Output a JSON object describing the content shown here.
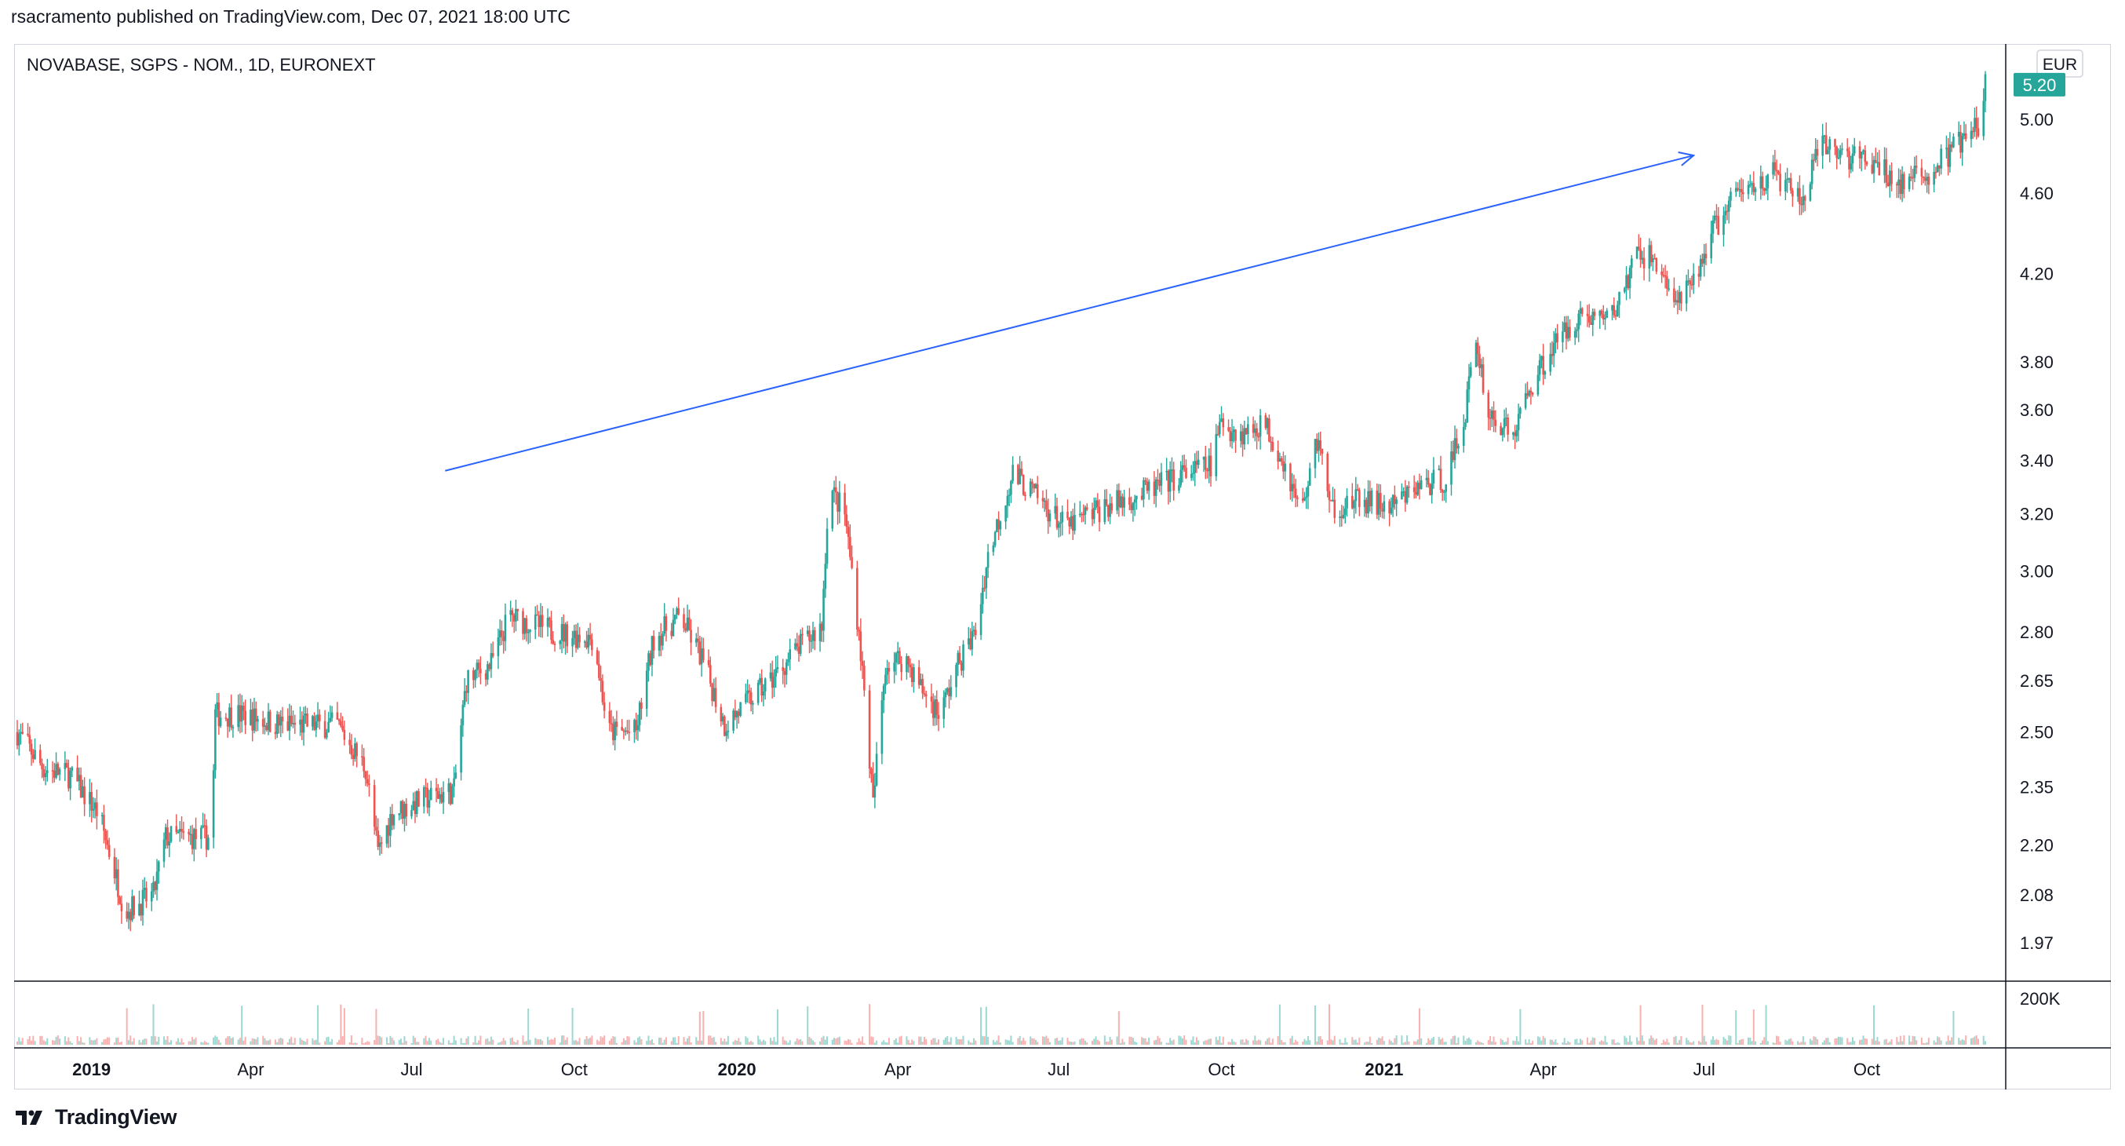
{
  "header": {
    "text": "rsacramento published on TradingView.com, Dec 07, 2021 18:00 UTC"
  },
  "symbol": {
    "text": "NOVABASE, SGPS - NOM., 1D, EURONEXT"
  },
  "footer": {
    "brand": "TradingView"
  },
  "colors": {
    "up": "#26a69a",
    "down": "#ef5350",
    "trendline": "#2962ff",
    "price_badge": "#26a69a"
  },
  "chart_data": {
    "type": "candlestick",
    "title": "",
    "currency": "EUR",
    "y_scale": "log",
    "y_ticks": [
      1.97,
      2.08,
      2.2,
      2.35,
      2.5,
      2.65,
      2.8,
      3.0,
      3.2,
      3.4,
      3.6,
      3.8,
      4.2,
      4.6,
      5.0
    ],
    "last_price": 5.2,
    "last_price_label": "5.20",
    "volume_tick_label": "200K",
    "x_ticks": [
      {
        "label": "2019",
        "date": "2019-01-01",
        "bold": true
      },
      {
        "label": "Apr",
        "date": "2019-04-01",
        "bold": false
      },
      {
        "label": "Jul",
        "date": "2019-07-01",
        "bold": false
      },
      {
        "label": "Oct",
        "date": "2019-10-01",
        "bold": false
      },
      {
        "label": "2020",
        "date": "2020-01-01",
        "bold": true
      },
      {
        "label": "Apr",
        "date": "2020-04-01",
        "bold": false
      },
      {
        "label": "Jul",
        "date": "2020-07-01",
        "bold": false
      },
      {
        "label": "Oct",
        "date": "2020-10-01",
        "bold": false
      },
      {
        "label": "2021",
        "date": "2021-01-01",
        "bold": true
      },
      {
        "label": "Apr",
        "date": "2021-04-01",
        "bold": false
      },
      {
        "label": "Jul",
        "date": "2021-07-01",
        "bold": false
      },
      {
        "label": "Oct",
        "date": "2021-10-01",
        "bold": false
      }
    ],
    "close_path": [
      [
        "2018-11-20",
        2.5
      ],
      [
        "2018-12-05",
        2.4
      ],
      [
        "2018-12-20",
        2.38
      ],
      [
        "2019-01-05",
        2.28
      ],
      [
        "2019-01-20",
        2.04
      ],
      [
        "2019-02-05",
        2.08
      ],
      [
        "2019-02-12",
        2.22
      ],
      [
        "2019-02-28",
        2.22
      ],
      [
        "2019-03-10",
        2.22
      ],
      [
        "2019-03-12",
        2.55
      ],
      [
        "2019-03-25",
        2.55
      ],
      [
        "2019-04-20",
        2.52
      ],
      [
        "2019-05-20",
        2.52
      ],
      [
        "2019-06-05",
        2.4
      ],
      [
        "2019-06-12",
        2.18
      ],
      [
        "2019-06-20",
        2.28
      ],
      [
        "2019-07-10",
        2.32
      ],
      [
        "2019-07-25",
        2.34
      ],
      [
        "2019-08-01",
        2.65
      ],
      [
        "2019-08-15",
        2.7
      ],
      [
        "2019-08-25",
        2.85
      ],
      [
        "2019-09-20",
        2.8
      ],
      [
        "2019-10-12",
        2.78
      ],
      [
        "2019-10-20",
        2.5
      ],
      [
        "2019-11-05",
        2.5
      ],
      [
        "2019-11-15",
        2.78
      ],
      [
        "2019-11-30",
        2.85
      ],
      [
        "2019-12-12",
        2.72
      ],
      [
        "2019-12-25",
        2.52
      ],
      [
        "2020-01-20",
        2.65
      ],
      [
        "2020-02-05",
        2.75
      ],
      [
        "2020-02-18",
        2.82
      ],
      [
        "2020-02-22",
        3.3
      ],
      [
        "2020-03-02",
        3.2
      ],
      [
        "2020-03-10",
        2.8
      ],
      [
        "2020-03-18",
        2.3
      ],
      [
        "2020-03-25",
        2.7
      ],
      [
        "2020-04-05",
        2.72
      ],
      [
        "2020-04-15",
        2.62
      ],
      [
        "2020-04-25",
        2.55
      ],
      [
        "2020-05-05",
        2.7
      ],
      [
        "2020-05-15",
        2.8
      ],
      [
        "2020-05-22",
        3.05
      ],
      [
        "2020-06-05",
        3.35
      ],
      [
        "2020-06-20",
        3.25
      ],
      [
        "2020-07-05",
        3.15
      ],
      [
        "2020-07-25",
        3.22
      ],
      [
        "2020-08-20",
        3.28
      ],
      [
        "2020-09-10",
        3.35
      ],
      [
        "2020-09-25",
        3.38
      ],
      [
        "2020-10-01",
        3.55
      ],
      [
        "2020-10-12",
        3.5
      ],
      [
        "2020-10-25",
        3.55
      ],
      [
        "2020-11-05",
        3.4
      ],
      [
        "2020-11-15",
        3.2
      ],
      [
        "2020-11-25",
        3.5
      ],
      [
        "2020-12-01",
        3.22
      ],
      [
        "2020-12-20",
        3.25
      ],
      [
        "2021-01-05",
        3.22
      ],
      [
        "2021-01-20",
        3.3
      ],
      [
        "2021-02-05",
        3.33
      ],
      [
        "2021-02-15",
        3.55
      ],
      [
        "2021-02-22",
        3.9
      ],
      [
        "2021-03-01",
        3.58
      ],
      [
        "2021-03-15",
        3.5
      ],
      [
        "2021-03-25",
        3.7
      ],
      [
        "2021-04-05",
        3.85
      ],
      [
        "2021-04-20",
        4.0
      ],
      [
        "2021-05-10",
        4.0
      ],
      [
        "2021-05-25",
        4.3
      ],
      [
        "2021-06-05",
        4.25
      ],
      [
        "2021-06-15",
        4.05
      ],
      [
        "2021-06-25",
        4.15
      ],
      [
        "2021-07-05",
        4.4
      ],
      [
        "2021-07-20",
        4.6
      ],
      [
        "2021-07-30",
        4.65
      ],
      [
        "2021-08-10",
        4.7
      ],
      [
        "2021-08-25",
        4.55
      ],
      [
        "2021-09-05",
        4.85
      ],
      [
        "2021-09-20",
        4.8
      ],
      [
        "2021-10-05",
        4.75
      ],
      [
        "2021-10-20",
        4.65
      ],
      [
        "2021-11-05",
        4.7
      ],
      [
        "2021-11-20",
        4.85
      ],
      [
        "2021-12-03",
        4.95
      ],
      [
        "2021-12-07",
        5.2
      ]
    ],
    "trendline": {
      "start": {
        "date": "2019-07-20",
        "price": 3.36
      },
      "end": {
        "date": "2021-06-25",
        "price": 4.8
      }
    }
  }
}
